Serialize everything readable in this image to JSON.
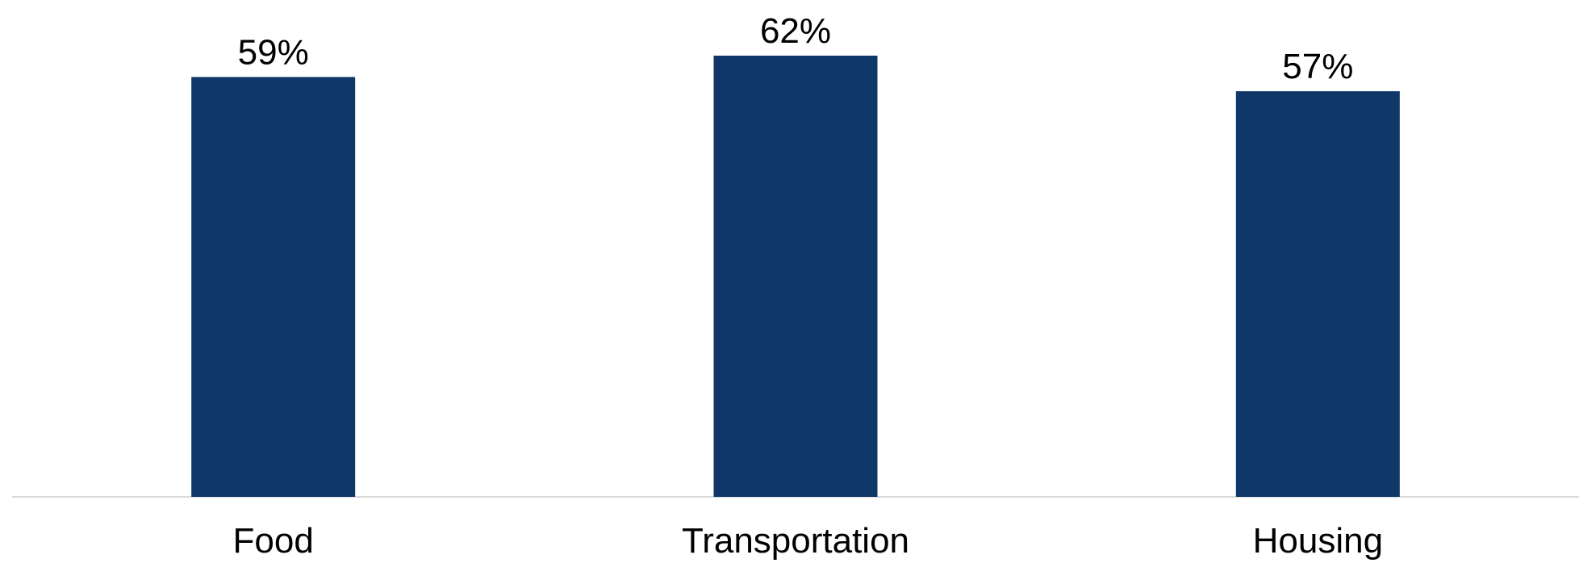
{
  "chart_data": {
    "type": "bar",
    "categories": [
      "Food",
      "Transportation",
      "Housing"
    ],
    "values": [
      59,
      62,
      57
    ],
    "value_labels": [
      "59%",
      "62%",
      "57%"
    ],
    "ylim": [
      0,
      62
    ],
    "grid": false,
    "legend": "none",
    "bar_color": "#0f3768",
    "baseline_color": "#d9d9d9"
  }
}
